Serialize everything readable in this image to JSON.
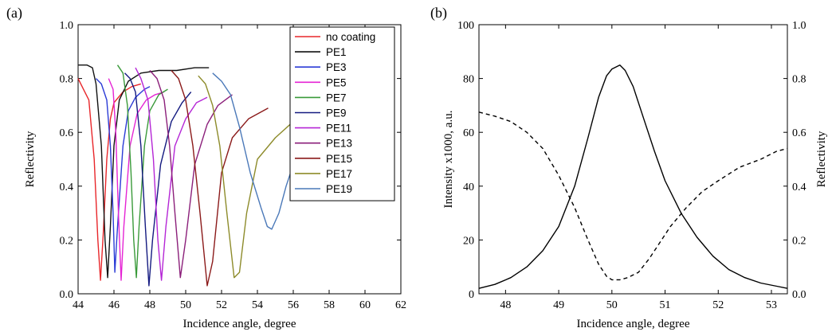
{
  "chart_data": [
    {
      "type": "line",
      "panel_label": "(a)",
      "xlabel": "Incidence angle, degree",
      "ylabel": "Reflectivity",
      "xlim": [
        44,
        62
      ],
      "ylim": [
        0,
        1.0
      ],
      "xticks": [
        "44",
        "46",
        "48",
        "50",
        "52",
        "54",
        "56",
        "58",
        "60",
        "62"
      ],
      "yticks": [
        "0.0",
        "0.2",
        "0.4",
        "0.6",
        "0.8",
        "1.0"
      ],
      "legend_position": "top-right",
      "series": [
        {
          "name": "no coating",
          "color": "#e8262a",
          "points": [
            [
              44.0,
              0.8
            ],
            [
              44.3,
              0.76
            ],
            [
              44.6,
              0.72
            ],
            [
              44.9,
              0.5
            ],
            [
              45.1,
              0.2
            ],
            [
              45.25,
              0.05
            ],
            [
              45.4,
              0.22
            ],
            [
              45.6,
              0.5
            ],
            [
              45.8,
              0.65
            ],
            [
              46.0,
              0.71
            ],
            [
              46.5,
              0.75
            ],
            [
              47.0,
              0.77
            ],
            [
              47.5,
              0.78
            ]
          ]
        },
        {
          "name": "PE1",
          "color": "#111111",
          "points": [
            [
              44.0,
              0.85
            ],
            [
              44.5,
              0.85
            ],
            [
              44.8,
              0.84
            ],
            [
              45.0,
              0.78
            ],
            [
              45.3,
              0.55
            ],
            [
              45.5,
              0.2
            ],
            [
              45.65,
              0.06
            ],
            [
              45.8,
              0.25
            ],
            [
              46.0,
              0.55
            ],
            [
              46.3,
              0.72
            ],
            [
              46.8,
              0.79
            ],
            [
              47.5,
              0.82
            ],
            [
              48.5,
              0.83
            ],
            [
              49.5,
              0.83
            ],
            [
              50.5,
              0.84
            ],
            [
              51.3,
              0.84
            ]
          ]
        },
        {
          "name": "PE3",
          "color": "#2b3bd6",
          "points": [
            [
              45.0,
              0.8
            ],
            [
              45.3,
              0.78
            ],
            [
              45.6,
              0.72
            ],
            [
              45.8,
              0.55
            ],
            [
              45.95,
              0.3
            ],
            [
              46.05,
              0.08
            ],
            [
              46.2,
              0.25
            ],
            [
              46.5,
              0.55
            ],
            [
              46.8,
              0.68
            ],
            [
              47.2,
              0.73
            ],
            [
              47.7,
              0.76
            ],
            [
              48.0,
              0.77
            ]
          ]
        },
        {
          "name": "PE5",
          "color": "#e524d4",
          "points": [
            [
              45.7,
              0.8
            ],
            [
              45.95,
              0.76
            ],
            [
              46.1,
              0.6
            ],
            [
              46.25,
              0.3
            ],
            [
              46.4,
              0.05
            ],
            [
              46.55,
              0.25
            ],
            [
              46.9,
              0.55
            ],
            [
              47.3,
              0.67
            ],
            [
              47.8,
              0.72
            ],
            [
              48.3,
              0.74
            ],
            [
              48.8,
              0.75
            ]
          ]
        },
        {
          "name": "PE7",
          "color": "#3a9a3a",
          "points": [
            [
              46.2,
              0.85
            ],
            [
              46.5,
              0.82
            ],
            [
              46.75,
              0.7
            ],
            [
              46.95,
              0.45
            ],
            [
              47.1,
              0.2
            ],
            [
              47.25,
              0.06
            ],
            [
              47.4,
              0.25
            ],
            [
              47.7,
              0.55
            ],
            [
              48.0,
              0.68
            ],
            [
              48.5,
              0.74
            ],
            [
              49.0,
              0.76
            ]
          ]
        },
        {
          "name": "PE9",
          "color": "#141a80",
          "points": [
            [
              46.6,
              0.82
            ],
            [
              46.9,
              0.8
            ],
            [
              47.2,
              0.75
            ],
            [
              47.5,
              0.55
            ],
            [
              47.75,
              0.25
            ],
            [
              47.95,
              0.03
            ],
            [
              48.15,
              0.2
            ],
            [
              48.6,
              0.48
            ],
            [
              49.2,
              0.64
            ],
            [
              49.8,
              0.71
            ],
            [
              50.3,
              0.75
            ]
          ]
        },
        {
          "name": "PE11",
          "color": "#b526d6",
          "points": [
            [
              47.2,
              0.84
            ],
            [
              47.5,
              0.8
            ],
            [
              47.9,
              0.72
            ],
            [
              48.2,
              0.5
            ],
            [
              48.45,
              0.2
            ],
            [
              48.65,
              0.05
            ],
            [
              48.9,
              0.25
            ],
            [
              49.4,
              0.55
            ],
            [
              50.0,
              0.65
            ],
            [
              50.6,
              0.71
            ],
            [
              51.2,
              0.73
            ]
          ]
        },
        {
          "name": "PE13",
          "color": "#8b1f7a",
          "points": [
            [
              48.0,
              0.83
            ],
            [
              48.4,
              0.8
            ],
            [
              48.8,
              0.72
            ],
            [
              49.1,
              0.55
            ],
            [
              49.4,
              0.3
            ],
            [
              49.7,
              0.06
            ],
            [
              50.0,
              0.2
            ],
            [
              50.5,
              0.48
            ],
            [
              51.2,
              0.63
            ],
            [
              51.8,
              0.7
            ],
            [
              52.6,
              0.74
            ]
          ]
        },
        {
          "name": "PE15",
          "color": "#8b1a1a",
          "points": [
            [
              49.2,
              0.83
            ],
            [
              49.6,
              0.8
            ],
            [
              50.0,
              0.72
            ],
            [
              50.4,
              0.55
            ],
            [
              50.8,
              0.3
            ],
            [
              51.2,
              0.03
            ],
            [
              51.5,
              0.12
            ],
            [
              52.0,
              0.45
            ],
            [
              52.6,
              0.58
            ],
            [
              53.5,
              0.65
            ],
            [
              54.6,
              0.69
            ]
          ]
        },
        {
          "name": "PE17",
          "color": "#8d8b2a",
          "points": [
            [
              50.7,
              0.81
            ],
            [
              51.1,
              0.78
            ],
            [
              51.5,
              0.7
            ],
            [
              51.9,
              0.55
            ],
            [
              52.3,
              0.3
            ],
            [
              52.7,
              0.06
            ],
            [
              53.0,
              0.08
            ],
            [
              53.4,
              0.3
            ],
            [
              54.0,
              0.5
            ],
            [
              55.0,
              0.58
            ],
            [
              56.0,
              0.64
            ]
          ]
        },
        {
          "name": "PE19",
          "color": "#4a78b8",
          "points": [
            [
              51.5,
              0.82
            ],
            [
              52.0,
              0.79
            ],
            [
              52.5,
              0.74
            ],
            [
              53.0,
              0.62
            ],
            [
              53.6,
              0.45
            ],
            [
              54.2,
              0.32
            ],
            [
              54.55,
              0.25
            ],
            [
              54.8,
              0.24
            ],
            [
              55.2,
              0.3
            ],
            [
              55.6,
              0.4
            ],
            [
              56.0,
              0.48
            ],
            [
              56.3,
              0.53
            ]
          ]
        }
      ]
    },
    {
      "type": "line",
      "panel_label": "(b)",
      "xlabel": "Incidence angle, degree",
      "ylabel_left": "Intensity x1000, a.u.",
      "ylabel_right": "Reflectivity",
      "xlim": [
        47.5,
        53.3
      ],
      "ylim_left": [
        0,
        100
      ],
      "ylim_right": [
        0,
        1.0
      ],
      "xticks": [
        "48",
        "49",
        "50",
        "51",
        "52",
        "53"
      ],
      "yticks_left": [
        "0",
        "20",
        "40",
        "60",
        "80",
        "100"
      ],
      "yticks_right": [
        "0.0",
        "0.2",
        "0.4",
        "0.6",
        "0.8",
        "1.0"
      ],
      "series": [
        {
          "name": "",
          "axis": "left",
          "style": "solid",
          "color": "#000000",
          "points": [
            [
              47.5,
              2
            ],
            [
              47.8,
              3.5
            ],
            [
              48.1,
              6
            ],
            [
              48.4,
              10
            ],
            [
              48.7,
              16
            ],
            [
              49.0,
              25
            ],
            [
              49.3,
              40
            ],
            [
              49.55,
              58
            ],
            [
              49.75,
              73
            ],
            [
              49.9,
              81
            ],
            [
              50.0,
              83.5
            ],
            [
              50.1,
              84.5
            ],
            [
              50.15,
              85
            ],
            [
              50.25,
              83
            ],
            [
              50.4,
              77
            ],
            [
              50.6,
              65
            ],
            [
              50.8,
              53
            ],
            [
              51.0,
              42
            ],
            [
              51.3,
              30
            ],
            [
              51.6,
              21
            ],
            [
              51.9,
              14
            ],
            [
              52.2,
              9
            ],
            [
              52.5,
              6
            ],
            [
              52.8,
              4
            ],
            [
              53.1,
              2.8
            ],
            [
              53.3,
              2
            ]
          ]
        },
        {
          "name": "",
          "axis": "right",
          "style": "dashed",
          "color": "#000000",
          "points": [
            [
              47.5,
              0.675
            ],
            [
              47.8,
              0.66
            ],
            [
              48.1,
              0.64
            ],
            [
              48.4,
              0.6
            ],
            [
              48.7,
              0.54
            ],
            [
              49.0,
              0.44
            ],
            [
              49.3,
              0.32
            ],
            [
              49.55,
              0.2
            ],
            [
              49.75,
              0.11
            ],
            [
              49.9,
              0.065
            ],
            [
              50.0,
              0.052
            ],
            [
              50.15,
              0.052
            ],
            [
              50.3,
              0.06
            ],
            [
              50.5,
              0.08
            ],
            [
              50.7,
              0.13
            ],
            [
              50.9,
              0.19
            ],
            [
              51.1,
              0.25
            ],
            [
              51.4,
              0.32
            ],
            [
              51.7,
              0.38
            ],
            [
              52.0,
              0.42
            ],
            [
              52.4,
              0.47
            ],
            [
              52.8,
              0.5
            ],
            [
              53.1,
              0.53
            ],
            [
              53.3,
              0.54
            ]
          ]
        }
      ]
    }
  ]
}
